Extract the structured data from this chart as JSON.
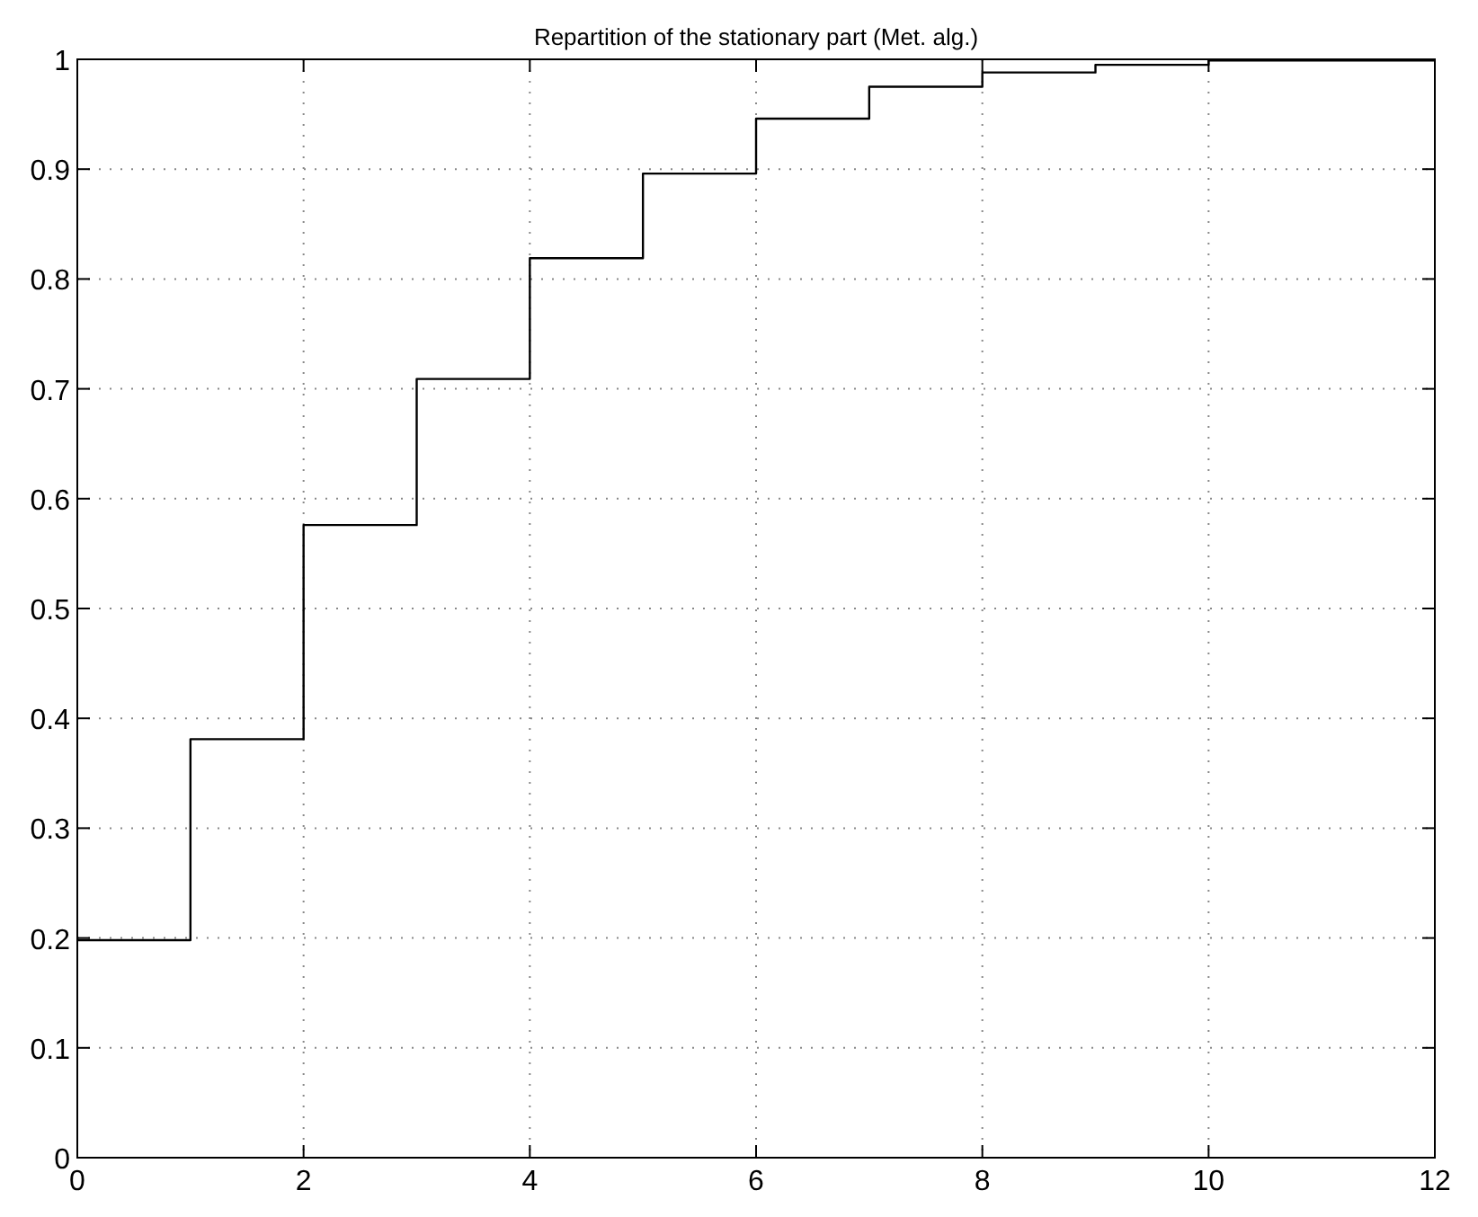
{
  "chart_data": {
    "type": "step",
    "title": "Repartition of the stationary part (Met. alg.)",
    "x": [
      0,
      1,
      2,
      3,
      4,
      5,
      6,
      7,
      8,
      9,
      10,
      12
    ],
    "series": [
      {
        "color": "#000000",
        "values": [
          0.198,
          0.381,
          0.576,
          0.709,
          0.819,
          0.896,
          0.946,
          0.975,
          0.988,
          0.995,
          0.999,
          0.999
        ]
      }
    ],
    "xlim": [
      0,
      12
    ],
    "xticks": [
      0,
      2,
      4,
      6,
      8,
      10,
      12
    ],
    "ylim": [
      0,
      1
    ],
    "yticks": [
      0,
      0.1,
      0.2,
      0.3,
      0.4,
      0.5,
      0.6,
      0.7,
      0.8,
      0.9,
      1
    ],
    "grid": true,
    "line_style": "solid"
  }
}
